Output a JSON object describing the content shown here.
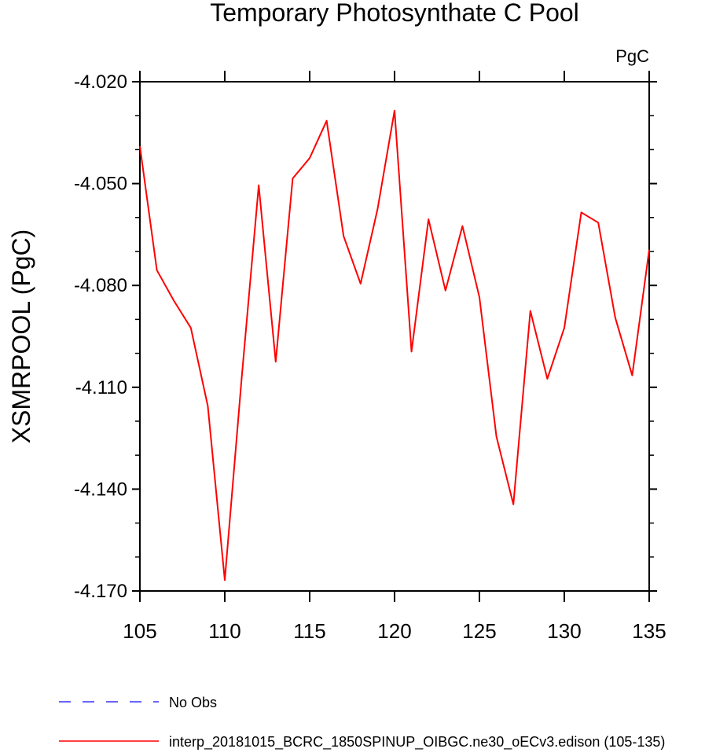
{
  "chart_data": {
    "type": "line",
    "title": "Temporary Photosynthate C Pool",
    "units_label": "PgC",
    "ylabel": "XSMRPOOL  (PgC)",
    "xlabel": "",
    "xlim": [
      105,
      135
    ],
    "ylim": [
      -4.17,
      -4.02
    ],
    "x_ticks": [
      105,
      110,
      115,
      120,
      125,
      130,
      135
    ],
    "y_ticks": [
      -4.02,
      -4.05,
      -4.08,
      -4.11,
      -4.14,
      -4.17
    ],
    "y_tick_labels": [
      "-4.020",
      "-4.050",
      "-4.080",
      "-4.110",
      "-4.140",
      "-4.170"
    ],
    "grid": false,
    "legend_position": "bottom",
    "legend": [
      {
        "label": "No Obs",
        "color": "#3333ff",
        "style": "dashed"
      },
      {
        "label": "interp_20181015_BCRC_1850SPINUP_OIBGC.ne30_oECv3.edison (105-135)",
        "color": "#ff0000",
        "style": "solid"
      }
    ],
    "series": [
      {
        "name": "interp_20181015_BCRC_1850SPINUP_OIBGC.ne30_oECv3.edison (105-135)",
        "color": "#ff0000",
        "x": [
          105,
          106,
          107,
          108,
          109,
          110,
          111,
          112,
          113,
          114,
          115,
          116,
          117,
          118,
          119,
          120,
          121,
          122,
          123,
          124,
          125,
          126,
          127,
          128,
          129,
          130,
          131,
          132,
          133,
          134,
          135
        ],
        "y": [
          -4.039,
          -4.0755,
          -4.0845,
          -4.0925,
          -4.1155,
          -4.1668,
          -4.107,
          -4.0505,
          -4.1025,
          -4.0485,
          -4.0425,
          -4.0315,
          -4.0655,
          -4.0795,
          -4.0575,
          -4.0285,
          -4.0995,
          -4.0605,
          -4.0815,
          -4.0625,
          -4.0835,
          -4.1245,
          -4.1445,
          -4.0875,
          -4.1075,
          -4.0925,
          -4.0585,
          -4.0615,
          -4.0895,
          -4.1065,
          -4.0695
        ]
      }
    ]
  }
}
